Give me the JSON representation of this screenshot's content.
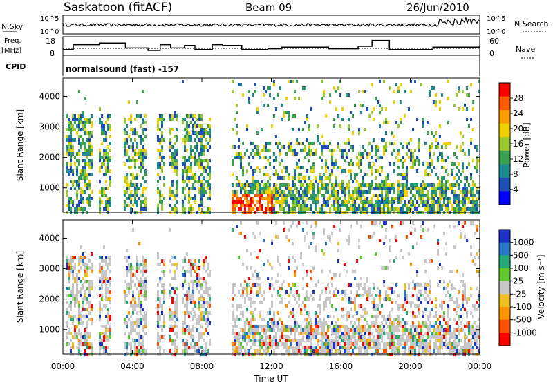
{
  "header": {
    "radar": "Saskatoon (fitACF)",
    "beam": "Beam 09",
    "date": "26/Jun/2010"
  },
  "noise_panel": {
    "left_label": "N.Sky",
    "right_label": "N.Search",
    "tick_top": "10^5",
    "tick_bottom": "10^0"
  },
  "freq_panel": {
    "left_label_line1": "Freq.",
    "left_label_line2": "[MHz]",
    "right_label": "Nave",
    "left_ticks": [
      "18",
      "8"
    ],
    "right_ticks": [
      "60",
      "0"
    ]
  },
  "cpid_panel": {
    "left_label": "CPID",
    "text": "normalsound (fast) -157"
  },
  "chart_data": [
    {
      "type": "heatmap",
      "name": "power",
      "ylabel": "Slant Range [km]",
      "yticks": [
        "4000",
        "3000",
        "2000",
        "1000"
      ],
      "ylim": [
        200,
        4600
      ],
      "xlim": [
        0,
        24
      ],
      "colorbar_label": "Power [dB]",
      "colorbar_ticks": [
        "28",
        "24",
        "20",
        "16",
        "12",
        "8",
        "4"
      ],
      "colorbar_colors": [
        "#ff0000",
        "#ff5a00",
        "#ff9c00",
        "#f0d000",
        "#9ac832",
        "#39a050",
        "#1e8c8c",
        "#1e50b4",
        "#0000ff"
      ]
    },
    {
      "type": "heatmap",
      "name": "velocity",
      "ylabel": "Slant Range [km]",
      "yticks": [
        "4000",
        "3000",
        "2000",
        "1000"
      ],
      "ylim": [
        200,
        4600
      ],
      "xlim": [
        0,
        24
      ],
      "xlabel": "Time UT",
      "xticks": [
        "00:00",
        "04:00",
        "08:00",
        "12:00",
        "16:00",
        "20:00",
        "00:00"
      ],
      "colorbar_label": "Velocity [m s⁻¹]",
      "colorbar_ticks": [
        "1000",
        "500",
        "100",
        "25",
        "-25",
        "-100",
        "-500",
        "-1000"
      ],
      "colorbar_colors": [
        "#1e32c8",
        "#2878c8",
        "#2aa878",
        "#62c832",
        "#c8c8c8",
        "#f0c020",
        "#ff9600",
        "#ff5000",
        "#ff0000"
      ]
    }
  ]
}
